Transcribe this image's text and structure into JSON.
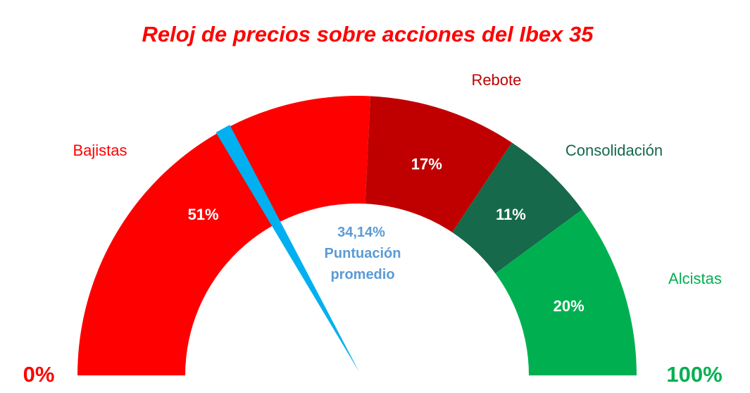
{
  "chart_data": {
    "type": "gauge",
    "title": "Reloj de precios sobre acciones del Ibex 35",
    "segments": [
      {
        "name": "Bajistas",
        "value": 51,
        "label": "51%",
        "color": "#ff0000",
        "label_color": "#ff0000"
      },
      {
        "name": "Rebote",
        "value": 17,
        "label": "17%",
        "color": "#c00000",
        "label_color": "#c00000"
      },
      {
        "name": "Consolidación",
        "value": 11,
        "label": "11%",
        "color": "#16694a",
        "label_color": "#16694a"
      },
      {
        "name": "Alcistas",
        "value": 20,
        "label": "20%",
        "color": "#00b050",
        "label_color": "#00b050"
      }
    ],
    "scale_min_label": "0%",
    "scale_max_label": "100%",
    "needle": {
      "value": 34.14,
      "value_label": "34,14%",
      "caption_line1": "Puntuación",
      "caption_line2": "promedio",
      "color": "#00b0f0"
    },
    "colors": {
      "title": "#ff0000",
      "min_label": "#ff0000",
      "max_label": "#00b050",
      "score_text": "#5b9bd5"
    }
  }
}
